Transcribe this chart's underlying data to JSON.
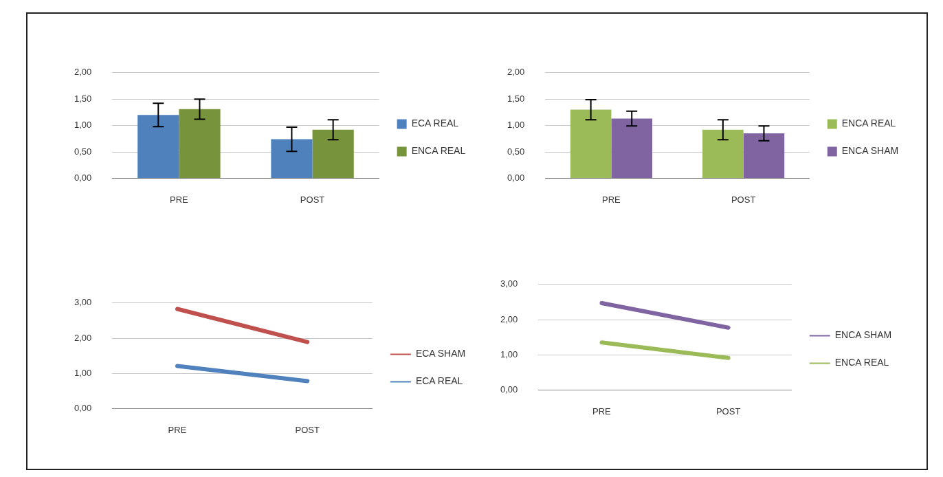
{
  "chart_data": [
    {
      "type": "bar",
      "categories": [
        "PRE",
        "POST"
      ],
      "ylim": [
        0,
        2
      ],
      "yticks": [
        {
          "value": 0,
          "label": "0,00"
        },
        {
          "value": 0.5,
          "label": "0,50"
        },
        {
          "value": 1,
          "label": "1,00"
        },
        {
          "value": 1.5,
          "label": "1,50"
        },
        {
          "value": 2,
          "label": "2,00"
        }
      ],
      "grid": "y",
      "legend": "right",
      "series": [
        {
          "name": "ECA REAL",
          "color": "#4f81bd",
          "values": [
            1.2,
            0.74
          ],
          "errors": [
            0.22,
            0.23
          ]
        },
        {
          "name": "ENCA REAL",
          "color": "#77933c",
          "values": [
            1.31,
            0.92
          ],
          "errors": [
            0.19,
            0.19
          ]
        }
      ]
    },
    {
      "type": "bar",
      "categories": [
        "PRE",
        "POST"
      ],
      "ylim": [
        0,
        2
      ],
      "yticks": [
        {
          "value": 0,
          "label": "0,00"
        },
        {
          "value": 0.5,
          "label": "0,50"
        },
        {
          "value": 1,
          "label": "1,00"
        },
        {
          "value": 1.5,
          "label": "1,50"
        },
        {
          "value": 2,
          "label": "2,00"
        }
      ],
      "grid": "y",
      "legend": "right",
      "series": [
        {
          "name": "ENCA REAL",
          "color": "#9bbb59",
          "values": [
            1.3,
            0.92
          ],
          "errors": [
            0.19,
            0.19
          ]
        },
        {
          "name": "ENCA SHAM",
          "color": "#8064a2",
          "values": [
            1.13,
            0.85
          ],
          "errors": [
            0.14,
            0.14
          ]
        }
      ]
    },
    {
      "type": "line",
      "categories": [
        "PRE",
        "POST"
      ],
      "ylim": [
        0,
        3
      ],
      "yticks": [
        {
          "value": 0,
          "label": "0,00"
        },
        {
          "value": 1,
          "label": "1,00"
        },
        {
          "value": 2,
          "label": "2,00"
        },
        {
          "value": 3,
          "label": "3,00"
        }
      ],
      "grid": "y",
      "legend": "right",
      "marker": "none",
      "series": [
        {
          "name": "ECA SHAM",
          "color": "#c0504d",
          "values": [
            2.83,
            1.89
          ]
        },
        {
          "name": "ECA REAL",
          "color": "#4f81bd",
          "values": [
            1.21,
            0.78
          ]
        }
      ]
    },
    {
      "type": "line",
      "categories": [
        "PRE",
        "POST"
      ],
      "ylim": [
        0,
        3
      ],
      "yticks": [
        {
          "value": 0,
          "label": "0,00"
        },
        {
          "value": 1,
          "label": "1,00"
        },
        {
          "value": 2,
          "label": "2,00"
        },
        {
          "value": 3,
          "label": "3,00"
        }
      ],
      "grid": "y",
      "legend": "right",
      "marker": "none",
      "series": [
        {
          "name": "ENCA SHAM",
          "color": "#8064a2",
          "values": [
            2.47,
            1.77
          ]
        },
        {
          "name": "ENCA REAL",
          "color": "#9bbb59",
          "values": [
            1.35,
            0.91
          ]
        }
      ]
    }
  ]
}
